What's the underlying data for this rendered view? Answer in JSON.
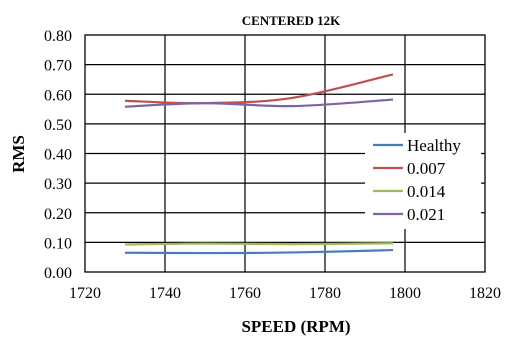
{
  "chart_data": {
    "type": "line",
    "title": "CENTERED 12K",
    "xlabel": "SPEED (RPM)",
    "ylabel": "RMS",
    "xlim": [
      1720,
      1820
    ],
    "ylim": [
      0,
      0.8
    ],
    "x_ticks": [
      "1720",
      "1740",
      "1760",
      "1780",
      "1800",
      "1820"
    ],
    "y_ticks": [
      "0.00",
      "0.10",
      "0.20",
      "0.30",
      "0.40",
      "0.50",
      "0.60",
      "0.70",
      "0.80"
    ],
    "grid": true,
    "legend_position": "right",
    "series": [
      {
        "name": "Healthy",
        "color": "#4a7ebb",
        "x": [
          1730,
          1750,
          1772,
          1797
        ],
        "values": [
          0.065,
          0.064,
          0.066,
          0.074
        ]
      },
      {
        "name": "0.007",
        "color": "#c0504d",
        "x": [
          1730,
          1750,
          1772,
          1797
        ],
        "values": [
          0.578,
          0.57,
          0.588,
          0.667
        ]
      },
      {
        "name": "0.014",
        "color": "#9bbb59",
        "x": [
          1730,
          1750,
          1772,
          1797
        ],
        "values": [
          0.093,
          0.096,
          0.094,
          0.097
        ]
      },
      {
        "name": "0.021",
        "color": "#8064a2",
        "x": [
          1730,
          1750,
          1772,
          1797
        ],
        "values": [
          0.558,
          0.57,
          0.56,
          0.582
        ]
      }
    ]
  }
}
